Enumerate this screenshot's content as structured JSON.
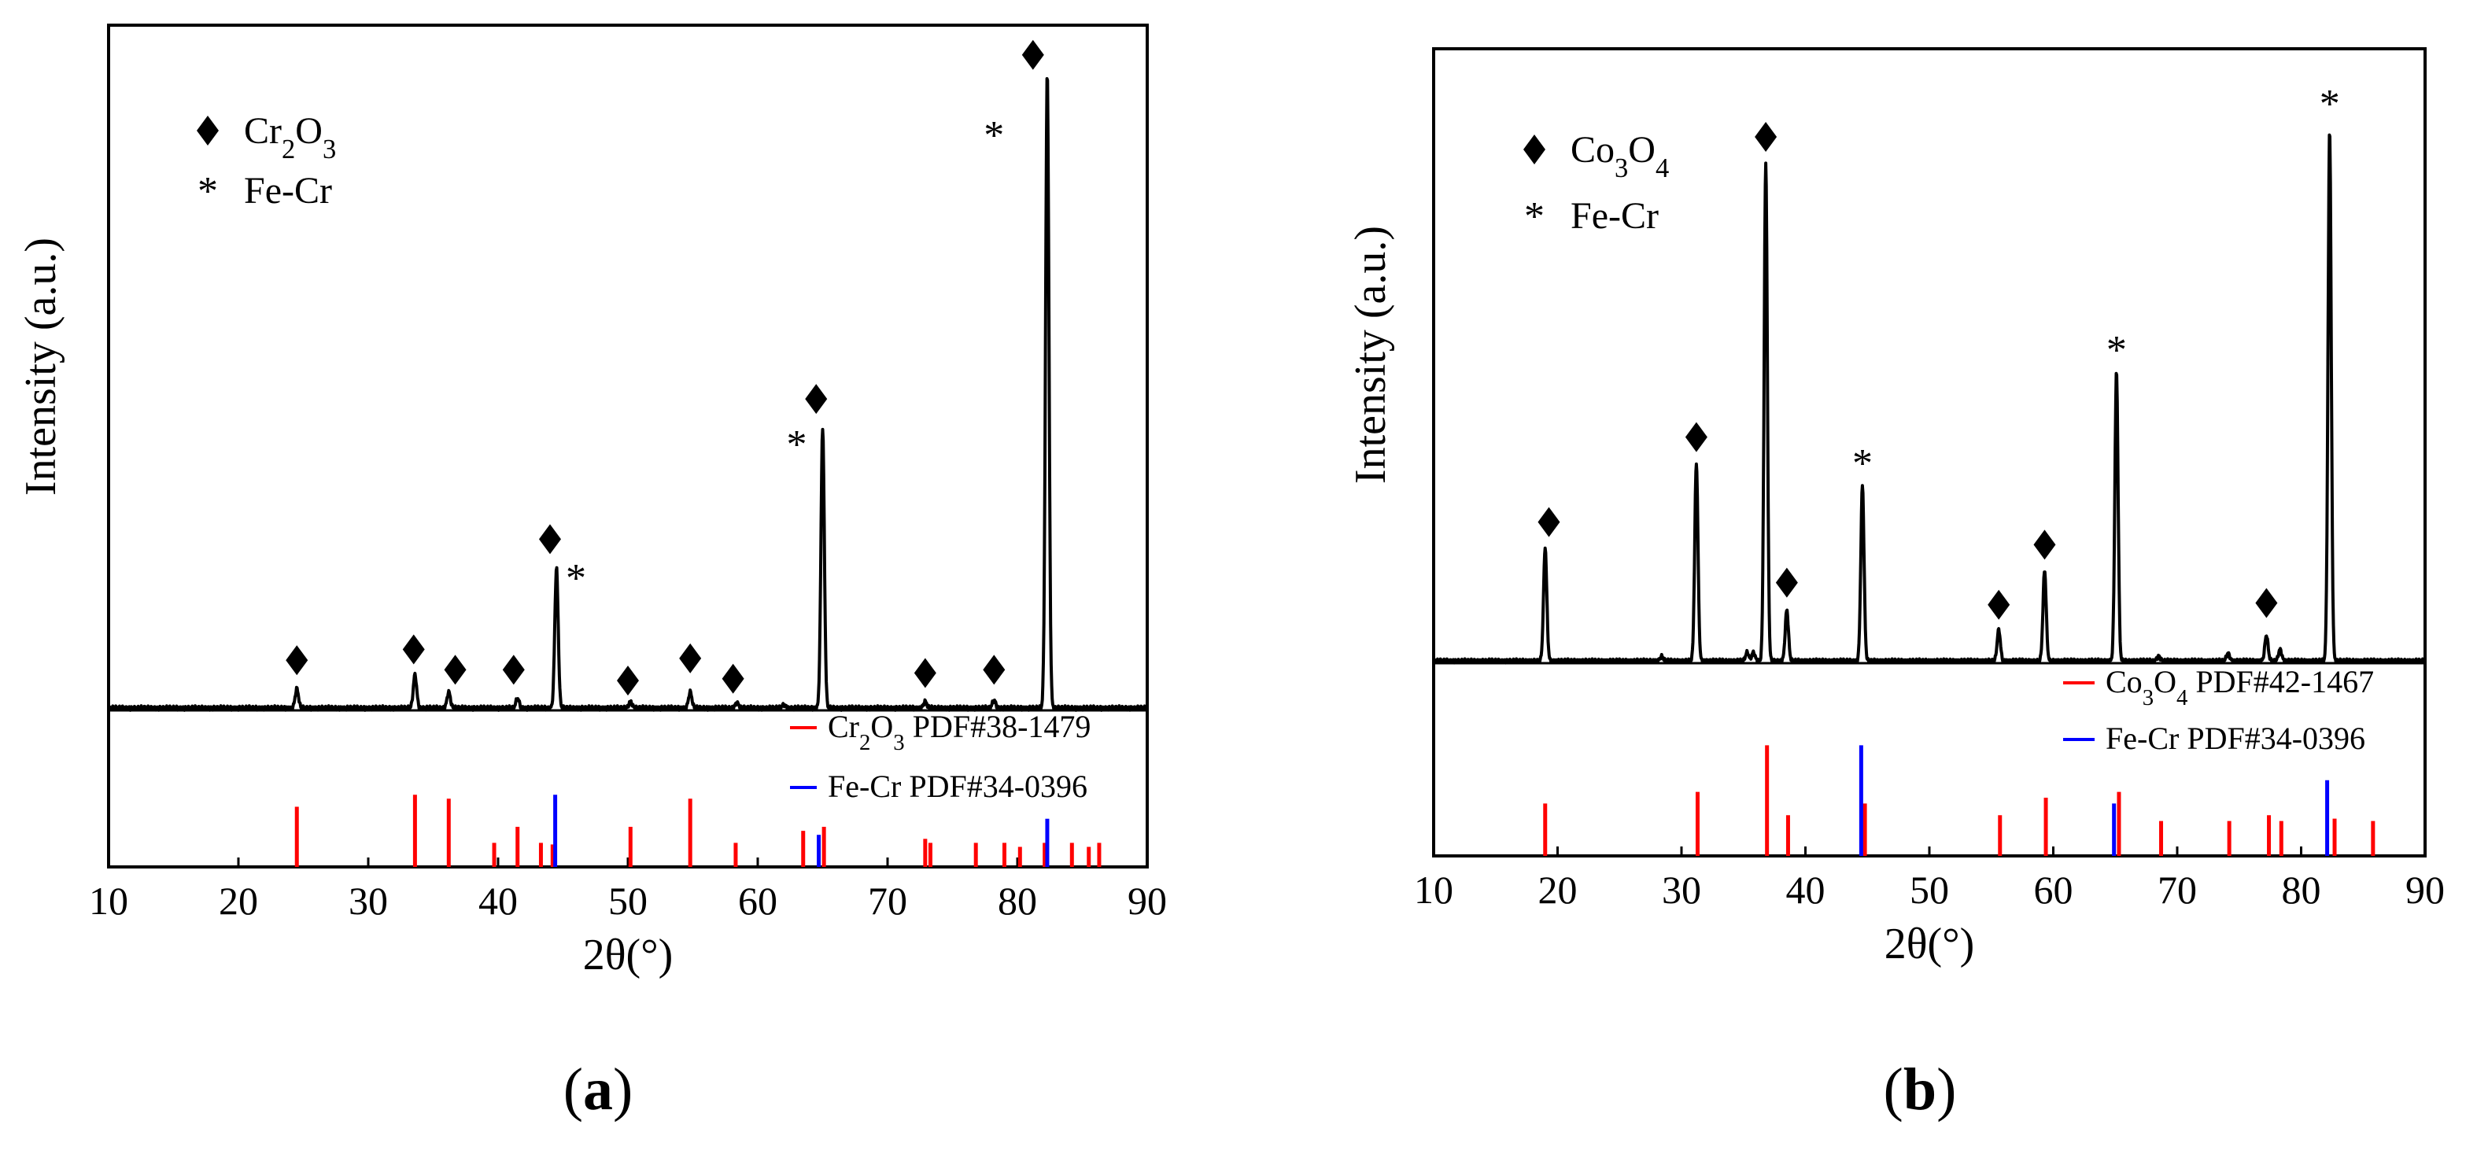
{
  "chart_data": [
    {
      "type": "line",
      "panel": "a",
      "panel_label_parts": [
        "(",
        "a",
        ")"
      ],
      "xlabel": "2θ(°)",
      "ylabel": "Intensity (a.u.)",
      "xlim": [
        10,
        90
      ],
      "x_ticks": [
        "10",
        "20",
        "30",
        "40",
        "50",
        "60",
        "70",
        "80",
        "90"
      ],
      "trace_ylim": [
        0,
        100
      ],
      "pattern_peaks": [
        {
          "x": 24.5,
          "y": 3.0
        },
        {
          "x": 33.6,
          "y": 5.2
        },
        {
          "x": 36.2,
          "y": 2.5
        },
        {
          "x": 41.5,
          "y": 1.5
        },
        {
          "x": 44.5,
          "y": 22.0
        },
        {
          "x": 50.2,
          "y": 1.0
        },
        {
          "x": 54.8,
          "y": 2.5
        },
        {
          "x": 58.4,
          "y": 0.8
        },
        {
          "x": 62.0,
          "y": 0.5
        },
        {
          "x": 65.0,
          "y": 44.0
        },
        {
          "x": 72.9,
          "y": 1.0
        },
        {
          "x": 78.2,
          "y": 1.2
        },
        {
          "x": 82.3,
          "y": 100.0
        }
      ],
      "markers": [
        {
          "x": 24.5,
          "y": 7.5,
          "symbol": "diamond"
        },
        {
          "x": 33.5,
          "y": 9.2,
          "symbol": "diamond"
        },
        {
          "x": 36.7,
          "y": 6.0,
          "symbol": "diamond"
        },
        {
          "x": 41.2,
          "y": 6.0,
          "symbol": "diamond"
        },
        {
          "x": 44.0,
          "y": 26.5,
          "symbol": "diamond"
        },
        {
          "x": 46.0,
          "y": 20.5,
          "symbol": "star"
        },
        {
          "x": 50.0,
          "y": 4.3,
          "symbol": "diamond"
        },
        {
          "x": 54.8,
          "y": 7.8,
          "symbol": "diamond"
        },
        {
          "x": 58.1,
          "y": 4.6,
          "symbol": "diamond"
        },
        {
          "x": 63.0,
          "y": 41.5,
          "symbol": "star"
        },
        {
          "x": 64.5,
          "y": 48.5,
          "symbol": "diamond"
        },
        {
          "x": 72.9,
          "y": 5.5,
          "symbol": "diamond"
        },
        {
          "x": 78.2,
          "y": 6.0,
          "symbol": "diamond"
        },
        {
          "x": 78.2,
          "y": 90.0,
          "symbol": "star"
        },
        {
          "x": 81.2,
          "y": 102.5,
          "symbol": "diamond"
        }
      ],
      "legend": [
        {
          "symbol": "diamond",
          "label_base": "Cr",
          "label_sub1": "2",
          "label_mid": "O",
          "label_sub2": "3"
        },
        {
          "symbol": "star",
          "label": "Fe-Cr"
        }
      ],
      "reference_legend": [
        {
          "color": "#ff0000",
          "label_base": "Cr",
          "label_sub1": "2",
          "label_mid": "O",
          "label_sub2": "3",
          "label_tail": " PDF#38-1479"
        },
        {
          "color": "#0000ff",
          "label_base": "Fe-Cr",
          "label_tail": "  PDF#34-0396"
        }
      ],
      "ref_ylim": [
        0,
        100
      ],
      "reference_series": [
        {
          "name": "Cr2O3 PDF#38-1479",
          "color": "#ff0000",
          "lines": [
            {
              "x": 24.5,
              "h": 75
            },
            {
              "x": 33.6,
              "h": 90
            },
            {
              "x": 36.2,
              "h": 85
            },
            {
              "x": 39.7,
              "h": 30
            },
            {
              "x": 41.5,
              "h": 50
            },
            {
              "x": 43.3,
              "h": 30
            },
            {
              "x": 44.2,
              "h": 28
            },
            {
              "x": 50.2,
              "h": 50
            },
            {
              "x": 54.8,
              "h": 85
            },
            {
              "x": 58.3,
              "h": 30
            },
            {
              "x": 63.5,
              "h": 45
            },
            {
              "x": 65.1,
              "h": 50
            },
            {
              "x": 72.9,
              "h": 35
            },
            {
              "x": 73.3,
              "h": 30
            },
            {
              "x": 76.8,
              "h": 30
            },
            {
              "x": 79.0,
              "h": 30
            },
            {
              "x": 80.2,
              "h": 25
            },
            {
              "x": 82.1,
              "h": 30
            },
            {
              "x": 84.2,
              "h": 30
            },
            {
              "x": 85.5,
              "h": 25
            },
            {
              "x": 86.3,
              "h": 30
            }
          ]
        },
        {
          "name": "Fe-Cr PDF#34-0396",
          "color": "#0000ff",
          "lines": [
            {
              "x": 44.4,
              "h": 90
            },
            {
              "x": 64.7,
              "h": 40
            },
            {
              "x": 82.3,
              "h": 60
            }
          ]
        }
      ]
    },
    {
      "type": "line",
      "panel": "b",
      "panel_label_parts": [
        "(",
        "b",
        ")"
      ],
      "xlabel": "2θ(°)",
      "ylabel": "Intensity (a.u.)",
      "xlim": [
        10,
        90
      ],
      "x_ticks": [
        "10",
        "20",
        "30",
        "40",
        "50",
        "60",
        "70",
        "80",
        "90"
      ],
      "trace_ylim": [
        0,
        100
      ],
      "pattern_peaks": [
        {
          "x": 19.0,
          "y": 20.0
        },
        {
          "x": 28.4,
          "y": 0.8
        },
        {
          "x": 31.2,
          "y": 35.0
        },
        {
          "x": 35.3,
          "y": 1.5
        },
        {
          "x": 35.8,
          "y": 1.5
        },
        {
          "x": 36.8,
          "y": 88.0
        },
        {
          "x": 38.5,
          "y": 9.0
        },
        {
          "x": 44.6,
          "y": 31.0
        },
        {
          "x": 55.6,
          "y": 5.5
        },
        {
          "x": 59.3,
          "y": 16.0
        },
        {
          "x": 65.1,
          "y": 51.0
        },
        {
          "x": 68.5,
          "y": 0.8
        },
        {
          "x": 74.1,
          "y": 1.3
        },
        {
          "x": 77.2,
          "y": 4.5
        },
        {
          "x": 78.3,
          "y": 2.0
        },
        {
          "x": 82.3,
          "y": 94.0
        }
      ],
      "markers": [
        {
          "x": 19.3,
          "y": 24.5,
          "symbol": "diamond"
        },
        {
          "x": 31.2,
          "y": 39.5,
          "symbol": "diamond"
        },
        {
          "x": 36.8,
          "y": 92.5,
          "symbol": "diamond"
        },
        {
          "x": 38.5,
          "y": 13.8,
          "symbol": "diamond"
        },
        {
          "x": 44.6,
          "y": 35.0,
          "symbol": "star"
        },
        {
          "x": 55.6,
          "y": 9.9,
          "symbol": "diamond"
        },
        {
          "x": 59.3,
          "y": 20.5,
          "symbol": "diamond"
        },
        {
          "x": 65.1,
          "y": 55.0,
          "symbol": "star"
        },
        {
          "x": 77.2,
          "y": 10.2,
          "symbol": "diamond"
        },
        {
          "x": 82.3,
          "y": 98.5,
          "symbol": "star"
        }
      ],
      "legend": [
        {
          "symbol": "diamond",
          "label_base": "Co",
          "label_sub1": "3",
          "label_mid": "O",
          "label_sub2": "4"
        },
        {
          "symbol": "star",
          "label": "Fe-Cr"
        }
      ],
      "reference_legend": [
        {
          "color": "#ff0000",
          "label_base": "Co",
          "label_sub1": "3",
          "label_mid": "O",
          "label_sub2": "4",
          "label_tail": " PDF#42-1467"
        },
        {
          "color": "#0000ff",
          "label_base": "Fe-Cr",
          "label_tail": "  PDF#34-0396"
        }
      ],
      "ref_ylim": [
        0,
        100
      ],
      "reference_series": [
        {
          "name": "Co3O4 PDF#42-1467",
          "color": "#ff0000",
          "lines": [
            {
              "x": 19.0,
              "h": 45
            },
            {
              "x": 31.3,
              "h": 55
            },
            {
              "x": 36.9,
              "h": 95
            },
            {
              "x": 38.6,
              "h": 35
            },
            {
              "x": 44.8,
              "h": 45
            },
            {
              "x": 55.7,
              "h": 35
            },
            {
              "x": 59.4,
              "h": 50
            },
            {
              "x": 65.3,
              "h": 55
            },
            {
              "x": 68.7,
              "h": 30
            },
            {
              "x": 74.2,
              "h": 30
            },
            {
              "x": 77.4,
              "h": 35
            },
            {
              "x": 78.4,
              "h": 30
            },
            {
              "x": 82.7,
              "h": 32
            },
            {
              "x": 85.8,
              "h": 30
            }
          ]
        },
        {
          "name": "Fe-Cr PDF#34-0396",
          "color": "#0000ff",
          "lines": [
            {
              "x": 44.5,
              "h": 95
            },
            {
              "x": 64.9,
              "h": 45
            },
            {
              "x": 82.1,
              "h": 65
            }
          ]
        }
      ]
    }
  ]
}
